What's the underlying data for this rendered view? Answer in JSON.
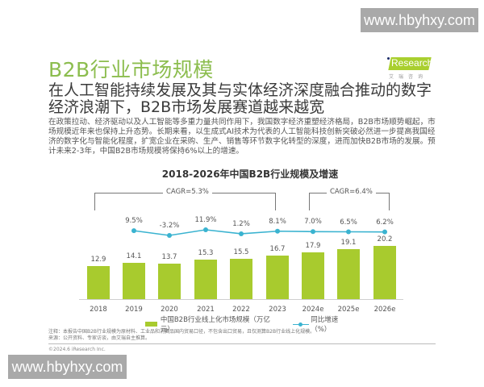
{
  "watermarks": {
    "top_right": "www.hbyhxy.com",
    "bottom_left": "www.hbyhxy.com"
  },
  "header": {
    "title": "B2B行业市场规模",
    "logo": {
      "brand": "Research",
      "brand_prefix": "i",
      "sub": "艾瑞咨询",
      "accent_color": "#a9cf2f"
    }
  },
  "subtitle": "在人工智能持续发展及其与实体经济深度融合推动的数字经济浪潮下，B2B市场发展赛道越来越宽",
  "body_text": "在政策拉动、经济驱动以及人工智能等多重力量共同作用下，我国数字经济重塑经济格局，B2B市场顺势崛起，市场规模近年来也保持上升态势。长期来看，以生成式AI技术为代表的人工智能科技创新突破必然进一步提高我国经济的数字化与智能化程度，扩宽企业在采购、生产、销售等环节数字化转型的深度，进而加快B2B市场的发展。预计未来2-3年，中国B2B市场规模将保持6%以上的增速。",
  "chart": {
    "title": "2018-2026年中国B2B行业规模及增速",
    "cagr_left": "CAGR=5.3%",
    "cagr_right": "CAGR=6.4%",
    "legend": {
      "bar": "中国B2B行业线上化市场规模（万亿元）",
      "line": "同比增速（%）"
    },
    "colors": {
      "bar": "#a8cb2e",
      "line": "#3ab3d0",
      "title_green": "#8cbd4e"
    }
  },
  "chart_data": {
    "type": "bar",
    "title": "2018-2026年中国B2B行业规模及增速",
    "categories": [
      "2018",
      "2019",
      "2020",
      "2021",
      "2022",
      "2023",
      "2024e",
      "2025e",
      "2026e"
    ],
    "series": [
      {
        "name": "中国B2B行业线上化市场规模（万亿元）",
        "type": "bar",
        "values": [
          12.9,
          14.1,
          13.7,
          15.3,
          15.5,
          16.7,
          17.9,
          19.1,
          20.2
        ],
        "labels": [
          "12.9",
          "14.1",
          "13.7",
          "15.3",
          "15.5",
          "16.7",
          "17.9",
          "19.1",
          "20.2"
        ]
      },
      {
        "name": "同比增速（%）",
        "type": "line",
        "values": [
          null,
          9.5,
          -3.2,
          11.9,
          1.2,
          8.1,
          7.0,
          6.5,
          6.2
        ],
        "labels": [
          "",
          "9.5%",
          "-3.2%",
          "11.9%",
          "1.2%",
          "8.1%",
          "7.0%",
          "6.5%",
          "6.2%"
        ]
      }
    ],
    "annotations": [
      {
        "text": "CAGR=5.3%",
        "span": [
          "2018",
          "2023"
        ]
      },
      {
        "text": "CAGR=6.4%",
        "span": [
          "2024e",
          "2026e"
        ]
      }
    ],
    "xlabel": "",
    "ylabel": "",
    "legend_position": "bottom",
    "grid": false
  },
  "notes": {
    "note": "注释：本报告中国B2B行业规模为原材料、工业品和消费品国内贸易口径，不包含出口贸易，且仅测算B2B行业线上化规模。",
    "source": "来源：公开资料、专家访谈，由艾瑞自主推算。"
  },
  "copyright": "©2024.6 iResearch Inc."
}
